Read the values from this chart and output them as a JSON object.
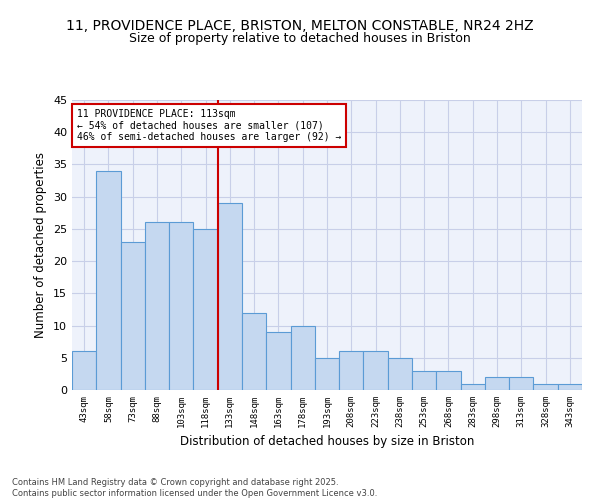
{
  "title_line1": "11, PROVIDENCE PLACE, BRISTON, MELTON CONSTABLE, NR24 2HZ",
  "title_line2": "Size of property relative to detached houses in Briston",
  "xlabel": "Distribution of detached houses by size in Briston",
  "ylabel": "Number of detached properties",
  "categories": [
    "43sqm",
    "58sqm",
    "73sqm",
    "88sqm",
    "103sqm",
    "118sqm",
    "133sqm",
    "148sqm",
    "163sqm",
    "178sqm",
    "193sqm",
    "208sqm",
    "223sqm",
    "238sqm",
    "253sqm",
    "268sqm",
    "283sqm",
    "298sqm",
    "313sqm",
    "328sqm",
    "343sqm"
  ],
  "values": [
    6,
    34,
    23,
    26,
    26,
    25,
    29,
    12,
    9,
    10,
    5,
    6,
    6,
    5,
    3,
    3,
    1,
    2,
    2,
    1,
    1
  ],
  "bar_color": "#c5d8f0",
  "bar_edge_color": "#5b9bd5",
  "vline_x": 5.5,
  "vline_color": "#cc0000",
  "annotation_text": "11 PROVIDENCE PLACE: 113sqm\n← 54% of detached houses are smaller (107)\n46% of semi-detached houses are larger (92) →",
  "annotation_box_color": "#cc0000",
  "ylim": [
    0,
    45
  ],
  "yticks": [
    0,
    5,
    10,
    15,
    20,
    25,
    30,
    35,
    40,
    45
  ],
  "background_color": "#eef2fb",
  "grid_color": "#c8cfe8",
  "footer_text": "Contains HM Land Registry data © Crown copyright and database right 2025.\nContains public sector information licensed under the Open Government Licence v3.0.",
  "title_fontsize": 10,
  "subtitle_fontsize": 9
}
